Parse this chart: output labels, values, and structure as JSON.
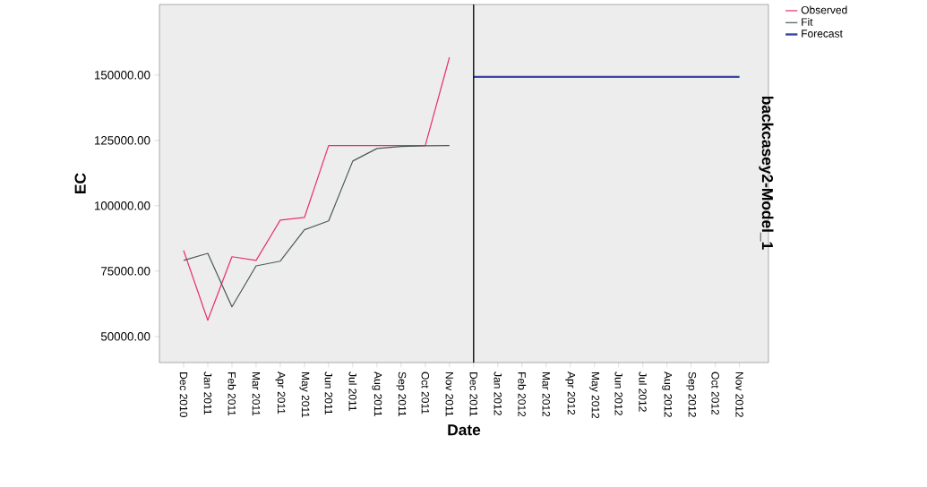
{
  "chart_data": {
    "type": "line",
    "xlabel": "Date",
    "ylabel": "EC",
    "categories": [
      "Dec 2010",
      "Jan 2011",
      "Feb 2011",
      "Mar 2011",
      "Apr 2011",
      "May 2011",
      "Jun 2011",
      "Jul 2011",
      "Aug 2011",
      "Sep 2011",
      "Oct 2011",
      "Nov 2011",
      "Dec 2011",
      "Jan 2012",
      "Feb 2012",
      "Mar 2012",
      "Apr 2012",
      "May 2012",
      "Jun 2012",
      "Jul 2012",
      "Aug 2012",
      "Sep 2012",
      "Oct 2012",
      "Nov 2012"
    ],
    "series": [
      {
        "name": "Observed",
        "color": "#e8306a",
        "values": [
          82900,
          56200,
          80500,
          79100,
          94500,
          95500,
          123000,
          123000,
          123000,
          123000,
          123000,
          156800,
          null,
          null,
          null,
          null,
          null,
          null,
          null,
          null,
          null,
          null,
          null,
          null
        ]
      },
      {
        "name": "Fit",
        "color": "#4a5a5a",
        "values": [
          79100,
          81800,
          61300,
          77000,
          78800,
          90800,
          94200,
          117100,
          121900,
          122700,
          122900,
          123000,
          null,
          null,
          null,
          null,
          null,
          null,
          null,
          null,
          null,
          null,
          null,
          null
        ]
      },
      {
        "name": "Forecast",
        "color": "#3a44a8",
        "values": [
          null,
          null,
          null,
          null,
          null,
          null,
          null,
          null,
          null,
          null,
          null,
          null,
          149300,
          149300,
          149300,
          149300,
          149300,
          149300,
          149300,
          149300,
          149300,
          149300,
          149300,
          149300
        ]
      }
    ],
    "ylim": [
      40000,
      177000
    ],
    "yticks": [
      {
        "value": 50000,
        "label": "50000.00"
      },
      {
        "value": 75000,
        "label": "75000.00"
      },
      {
        "value": 100000,
        "label": "100000.00"
      },
      {
        "value": 125000,
        "label": "125000.00"
      },
      {
        "value": 150000,
        "label": "150000.00"
      }
    ],
    "ref_lines": [
      {
        "axis": "x",
        "value": "Dec 2011",
        "color": "#000000"
      }
    ],
    "annotations": [
      "backcasey2-Model_1"
    ],
    "legend": "top right",
    "grid": false,
    "marker": "none",
    "line_style": "solid"
  }
}
